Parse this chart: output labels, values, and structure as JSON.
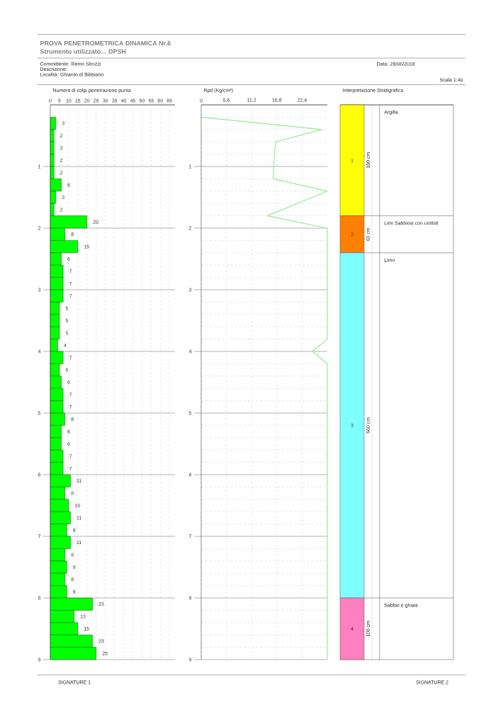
{
  "chart_data": [
    {
      "type": "bar",
      "orientation": "horizontal",
      "title": "PROVA PENETROMETRICA DINAMICA Nr.6",
      "subtitle": "Strumento utilizzato... DPSH",
      "xlabel": "Numero di colpi penetrazione punta",
      "annotations": [
        "Committente: Remo Strozzi",
        "Descrizione:",
        "Località: Ghiardo di Bibbiano",
        "Data: 28/06/2018",
        "Scala 1:40",
        "SIGNATURE 1",
        "SIGNATURE 2"
      ],
      "x": [
        0.3,
        0.5,
        0.7,
        0.9,
        1.1,
        1.3,
        1.5,
        1.7,
        1.9,
        2.1,
        2.3,
        2.5,
        2.7,
        2.9,
        3.1,
        3.3,
        3.5,
        3.7,
        3.9,
        4.1,
        4.3,
        4.5,
        4.7,
        4.9,
        5.1,
        5.3,
        5.5,
        5.7,
        5.9,
        6.1,
        6.3,
        6.5,
        6.7,
        6.9,
        7.1,
        7.3,
        7.5,
        7.7,
        7.9,
        8.1,
        8.3,
        8.5,
        8.7,
        8.9
      ],
      "values": [
        3,
        2,
        2,
        2,
        2,
        6,
        3,
        2,
        20,
        8,
        15,
        6,
        7,
        7,
        7,
        5,
        5,
        5,
        4,
        7,
        5,
        6,
        7,
        7,
        8,
        6,
        6,
        7,
        7,
        11,
        8,
        10,
        11,
        9,
        11,
        8,
        9,
        8,
        9,
        23,
        13,
        15,
        23,
        25
      ],
      "color": "#00ff00",
      "xlim": [
        0,
        68
      ],
      "xticks": [
        0,
        5,
        10,
        15,
        20,
        25,
        30,
        35,
        40,
        45,
        50,
        55,
        60,
        65
      ],
      "ylim": [
        9,
        0
      ],
      "yticks": [
        1,
        2,
        3,
        4,
        5,
        6,
        7,
        8,
        9
      ],
      "grid": true,
      "data_labels": true
    },
    {
      "type": "line",
      "orientation": "horizontal",
      "xlabel": "Rpd (Kg/cm²)",
      "x": [
        0.2,
        0.4,
        0.6,
        0.8,
        1,
        1.2,
        1.4,
        1.6,
        1.8,
        2,
        2.2,
        2.4,
        2.6,
        2.8,
        3,
        3.2,
        3.4,
        3.6,
        3.8,
        4,
        4.2,
        4.4,
        4.6,
        4.8,
        5,
        5.2,
        5.4,
        5.6,
        5.8,
        6,
        6.2,
        6.4,
        6.6,
        6.8,
        7,
        7.2,
        7.4,
        7.6,
        7.8,
        8,
        8.2,
        8.4,
        8.6,
        8.8,
        9
      ],
      "values": [
        0,
        26.8,
        16.5,
        16.3,
        16.1,
        16.0,
        28,
        21.3,
        14.7,
        28,
        28,
        28,
        28,
        28,
        28,
        28,
        28,
        28,
        28,
        24.7,
        28,
        28,
        28,
        28,
        28,
        28,
        28,
        28,
        28,
        28,
        28,
        28,
        28,
        28,
        28,
        28,
        28,
        28,
        28,
        28,
        28,
        28,
        28,
        28,
        28
      ],
      "color": "#99e699",
      "xlim": [
        0,
        28
      ],
      "xticks": [
        0,
        {
          "value": 5.6,
          "label": "5,6"
        },
        {
          "value": 11.2,
          "label": "11,2"
        },
        {
          "value": 16.8,
          "label": "16,8"
        },
        {
          "value": 22.4,
          "label": "22,4"
        }
      ],
      "ylim": [
        9,
        0
      ],
      "yticks": [
        {
          "value": 0.2,
          "label": null
        },
        {
          "value": 0.4,
          "label": null
        },
        {
          "value": 0.6,
          "label": null
        },
        {
          "value": 0.8,
          "label": null
        },
        1,
        {
          "value": 1.2,
          "label": null
        },
        {
          "value": 1.4,
          "label": null
        },
        {
          "value": 1.6,
          "label": null
        },
        {
          "value": 1.8,
          "label": null
        },
        2,
        {
          "value": 2.2,
          "label": null
        },
        {
          "value": 2.4,
          "label": null
        },
        {
          "value": 2.6,
          "label": null
        },
        {
          "value": 2.8,
          "label": null
        },
        3,
        {
          "value": 3.2,
          "label": null
        },
        {
          "value": 3.4,
          "label": null
        },
        {
          "value": 3.6,
          "label": null
        },
        {
          "value": 3.8,
          "label": null
        },
        4,
        {
          "value": 4.2,
          "label": null
        },
        {
          "value": 4.4,
          "label": null
        },
        {
          "value": 4.6,
          "label": null
        },
        {
          "value": 4.8,
          "label": null
        },
        5,
        {
          "value": 5.2,
          "label": null
        },
        {
          "value": 5.4,
          "label": null
        },
        {
          "value": 5.6,
          "label": null
        },
        {
          "value": 5.8,
          "label": null
        },
        6,
        {
          "value": 6.2,
          "label": null
        },
        {
          "value": 6.4,
          "label": null
        },
        {
          "value": 6.6,
          "label": null
        },
        {
          "value": 6.8,
          "label": null
        },
        7,
        {
          "value": 7.2,
          "label": null
        },
        {
          "value": 7.4,
          "label": null
        },
        {
          "value": 7.6,
          "label": null
        },
        {
          "value": 7.8,
          "label": null
        },
        8,
        {
          "value": 8.2,
          "label": null
        },
        {
          "value": 8.4,
          "label": null
        },
        {
          "value": 8.6,
          "label": null
        },
        {
          "value": 8.8,
          "label": null
        },
        9
      ],
      "grid": true
    },
    {
      "type": "bar",
      "stacked": true,
      "title": "Interpretazione Stratigrafica",
      "categories": [
        null
      ],
      "ylim": [
        0,
        900
      ],
      "tick_labels": false,
      "series": [
        {
          "name": "Sabbie e ghiaie",
          "color": "#ff80c0",
          "values": [
            100
          ],
          "value_labels": [
            "100 cm"
          ]
        },
        {
          "name": "Limo",
          "color": "#80ffff",
          "values": [
            560
          ],
          "value_labels": [
            "560 cm"
          ]
        },
        {
          "name": "Limi Sabbiosi con ciottoli",
          "color": "#ff8000",
          "values": [
            60
          ],
          "value_labels": [
            "60 cm"
          ]
        },
        {
          "name": "Argilla",
          "color": "#ffff00",
          "values": [
            180
          ],
          "value_labels": [
            "180 cm"
          ]
        }
      ],
      "annotations": [
        "4",
        "3",
        "2",
        "1"
      ]
    }
  ]
}
